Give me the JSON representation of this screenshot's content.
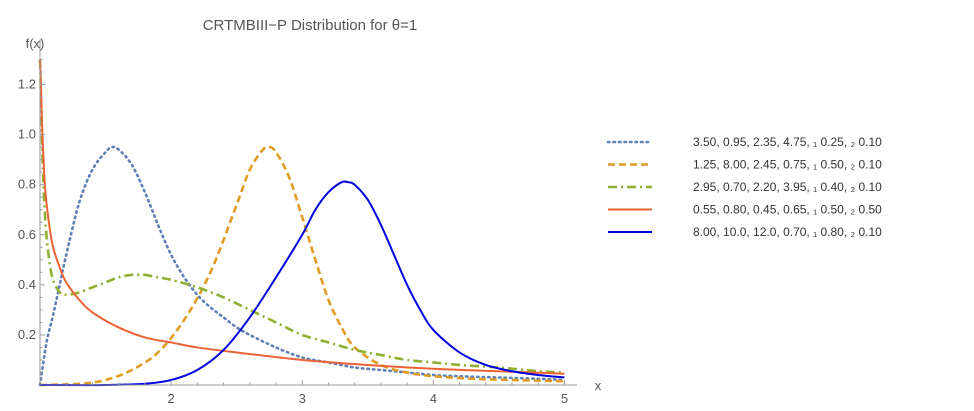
{
  "chart_data": {
    "type": "line",
    "title": "CRTMBIII−P Distribution for θ=1",
    "xlabel": "x",
    "ylabel": "f(x)",
    "xlim": [
      1.0,
      5.05
    ],
    "ylim": [
      0.0,
      1.33
    ],
    "xticks": [
      2,
      3,
      4,
      5
    ],
    "yticks": [
      0.2,
      0.4,
      0.6,
      0.8,
      1.0,
      1.2
    ],
    "ytick_labels": [
      "0.2",
      "0.4",
      "0.6",
      "0.8",
      "1.0",
      "1.2"
    ],
    "grid": false,
    "legend_position": "right",
    "series": [
      {
        "name": "3.50,   0.95,   2.35,   4.75,  ₁ 0.25,  ₂ 0.10",
        "color": "#5E81B5",
        "style": "dotted",
        "x": [
          1.0,
          1.05,
          1.1,
          1.15,
          1.2,
          1.3,
          1.4,
          1.5,
          1.55,
          1.6,
          1.7,
          1.8,
          1.9,
          2.0,
          2.1,
          2.2,
          2.3,
          2.4,
          2.5,
          2.6,
          2.8,
          3.0,
          3.2,
          3.4,
          3.6,
          3.8,
          4.0,
          4.2,
          4.5,
          4.8,
          5.0
        ],
        "y": [
          0.0,
          0.17,
          0.28,
          0.4,
          0.52,
          0.73,
          0.86,
          0.93,
          0.95,
          0.94,
          0.88,
          0.77,
          0.64,
          0.52,
          0.43,
          0.36,
          0.31,
          0.27,
          0.23,
          0.2,
          0.15,
          0.11,
          0.09,
          0.07,
          0.06,
          0.05,
          0.04,
          0.035,
          0.03,
          0.025,
          0.02
        ]
      },
      {
        "name": "1.25,   8.00,   2.45,   0.75,  ₁ 0.50,  ₂ 0.10",
        "color": "#E19C24",
        "style": "dashed",
        "x": [
          1.0,
          1.3,
          1.5,
          1.7,
          1.9,
          2.1,
          2.3,
          2.5,
          2.6,
          2.7,
          2.75,
          2.8,
          2.9,
          3.0,
          3.1,
          3.2,
          3.3,
          3.4,
          3.6,
          3.8,
          4.0,
          4.3,
          4.6,
          5.0
        ],
        "y": [
          0.0,
          0.005,
          0.02,
          0.06,
          0.13,
          0.26,
          0.45,
          0.72,
          0.86,
          0.94,
          0.95,
          0.93,
          0.83,
          0.67,
          0.5,
          0.34,
          0.23,
          0.15,
          0.08,
          0.05,
          0.035,
          0.025,
          0.02,
          0.015
        ]
      },
      {
        "name": "2.95,   0.70,   2.20,   3.95,  ₁ 0.40,  ₂ 0.10",
        "color": "#8FB032",
        "style": "dashdot",
        "x": [
          1.0,
          1.02,
          1.04,
          1.07,
          1.1,
          1.15,
          1.2,
          1.3,
          1.4,
          1.5,
          1.6,
          1.7,
          1.75,
          1.8,
          1.9,
          2.0,
          2.2,
          2.4,
          2.6,
          2.8,
          3.0,
          3.2,
          3.4,
          3.6,
          3.8,
          4.0,
          4.2,
          4.5,
          4.8,
          5.0
        ],
        "y": [
          1.3,
          0.9,
          0.66,
          0.5,
          0.42,
          0.37,
          0.36,
          0.37,
          0.39,
          0.41,
          0.43,
          0.44,
          0.44,
          0.44,
          0.43,
          0.42,
          0.39,
          0.35,
          0.3,
          0.25,
          0.2,
          0.17,
          0.14,
          0.12,
          0.1,
          0.09,
          0.08,
          0.07,
          0.055,
          0.05
        ]
      },
      {
        "name": "0.55,   0.80,   0.45,   0.65,  ₁ 0.50,  ₂ 0.50",
        "color": "#EB6235",
        "style": "solid",
        "x": [
          1.0,
          1.01,
          1.02,
          1.04,
          1.07,
          1.1,
          1.15,
          1.2,
          1.3,
          1.4,
          1.6,
          1.8,
          2.0,
          2.2,
          2.5,
          3.0,
          3.5,
          4.0,
          4.5,
          5.0
        ],
        "y": [
          1.3,
          1.15,
          0.98,
          0.78,
          0.64,
          0.55,
          0.47,
          0.41,
          0.34,
          0.29,
          0.23,
          0.19,
          0.17,
          0.15,
          0.13,
          0.1,
          0.08,
          0.065,
          0.055,
          0.045
        ]
      },
      {
        "name": "8.00,   10.0,   12.0,   0.70,  ₁ 0.80,  ₂ 0.10",
        "color": "#0000E0",
        "style": "solid",
        "x": [
          1.0,
          1.5,
          1.8,
          2.0,
          2.2,
          2.4,
          2.6,
          2.8,
          3.0,
          3.1,
          3.2,
          3.3,
          3.35,
          3.4,
          3.5,
          3.6,
          3.7,
          3.8,
          3.9,
          4.0,
          4.2,
          4.4,
          4.6,
          4.8,
          5.0
        ],
        "y": [
          0.0,
          0.0,
          0.005,
          0.02,
          0.06,
          0.14,
          0.27,
          0.43,
          0.6,
          0.7,
          0.77,
          0.81,
          0.81,
          0.8,
          0.74,
          0.64,
          0.52,
          0.4,
          0.3,
          0.22,
          0.13,
          0.08,
          0.055,
          0.04,
          0.03
        ]
      }
    ]
  }
}
